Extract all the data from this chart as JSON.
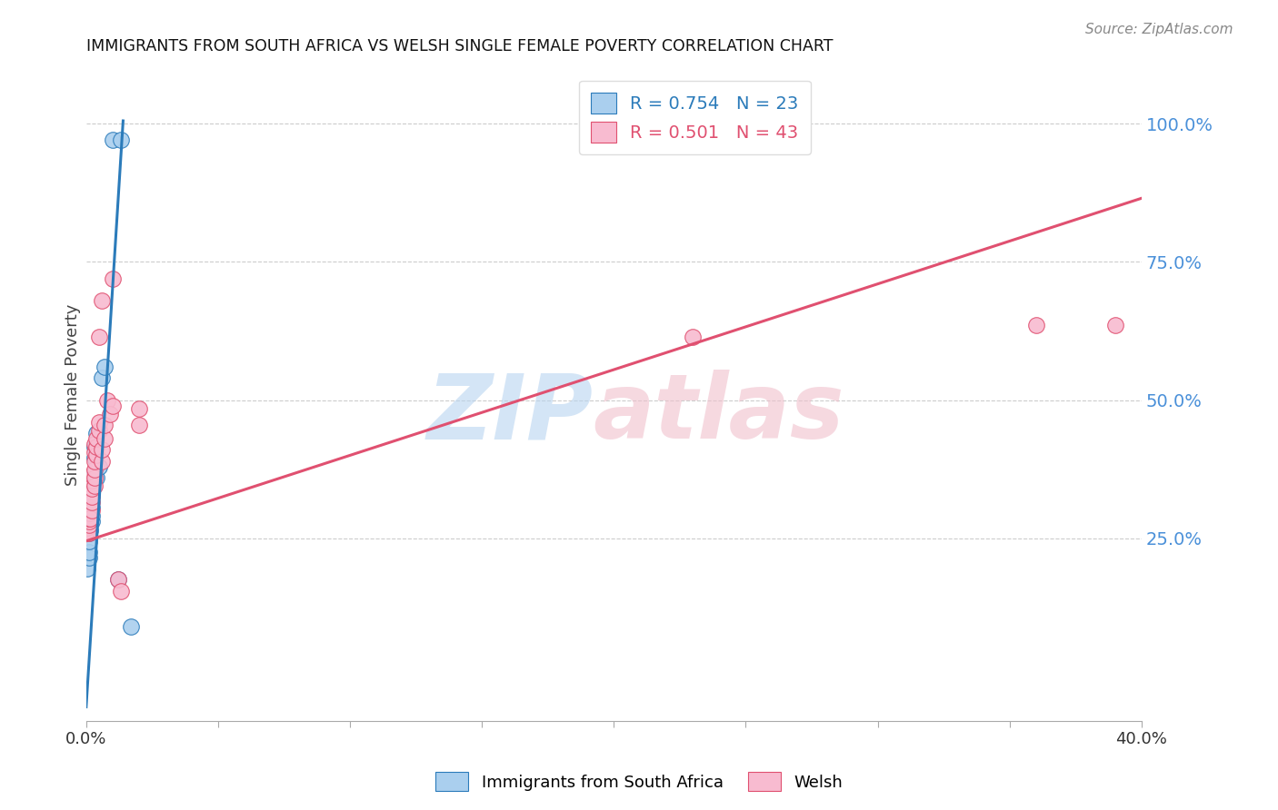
{
  "title": "IMMIGRANTS FROM SOUTH AFRICA VS WELSH SINGLE FEMALE POVERTY CORRELATION CHART",
  "source": "Source: ZipAtlas.com",
  "ylabel": "Single Female Poverty",
  "right_yticks": [
    "100.0%",
    "75.0%",
    "50.0%",
    "25.0%"
  ],
  "right_ytick_vals": [
    1.0,
    0.75,
    0.5,
    0.25
  ],
  "xlim": [
    0.0,
    0.4
  ],
  "ylim": [
    -0.08,
    1.1
  ],
  "legend_r1": "R = 0.754   N = 23",
  "legend_r2": "R = 0.501   N = 43",
  "blue_scatter": [
    [
      0.0005,
      0.195
    ],
    [
      0.001,
      0.215
    ],
    [
      0.001,
      0.225
    ],
    [
      0.001,
      0.245
    ],
    [
      0.001,
      0.26
    ],
    [
      0.001,
      0.27
    ],
    [
      0.0015,
      0.265
    ],
    [
      0.002,
      0.28
    ],
    [
      0.002,
      0.29
    ],
    [
      0.002,
      0.305
    ],
    [
      0.0025,
      0.35
    ],
    [
      0.003,
      0.37
    ],
    [
      0.003,
      0.395
    ],
    [
      0.003,
      0.415
    ],
    [
      0.004,
      0.44
    ],
    [
      0.004,
      0.36
    ],
    [
      0.005,
      0.38
    ],
    [
      0.006,
      0.54
    ],
    [
      0.007,
      0.56
    ],
    [
      0.01,
      0.97
    ],
    [
      0.013,
      0.97
    ],
    [
      0.012,
      0.175
    ],
    [
      0.017,
      0.09
    ]
  ],
  "pink_scatter": [
    [
      0.0003,
      0.265
    ],
    [
      0.0005,
      0.27
    ],
    [
      0.001,
      0.26
    ],
    [
      0.001,
      0.275
    ],
    [
      0.001,
      0.28
    ],
    [
      0.001,
      0.285
    ],
    [
      0.001,
      0.295
    ],
    [
      0.001,
      0.305
    ],
    [
      0.0015,
      0.285
    ],
    [
      0.002,
      0.3
    ],
    [
      0.002,
      0.315
    ],
    [
      0.002,
      0.325
    ],
    [
      0.002,
      0.34
    ],
    [
      0.002,
      0.355
    ],
    [
      0.002,
      0.365
    ],
    [
      0.003,
      0.345
    ],
    [
      0.003,
      0.36
    ],
    [
      0.003,
      0.375
    ],
    [
      0.003,
      0.39
    ],
    [
      0.003,
      0.405
    ],
    [
      0.003,
      0.42
    ],
    [
      0.004,
      0.4
    ],
    [
      0.004,
      0.415
    ],
    [
      0.004,
      0.43
    ],
    [
      0.005,
      0.445
    ],
    [
      0.005,
      0.46
    ],
    [
      0.005,
      0.615
    ],
    [
      0.006,
      0.39
    ],
    [
      0.006,
      0.41
    ],
    [
      0.006,
      0.68
    ],
    [
      0.007,
      0.43
    ],
    [
      0.007,
      0.455
    ],
    [
      0.008,
      0.5
    ],
    [
      0.009,
      0.475
    ],
    [
      0.01,
      0.49
    ],
    [
      0.01,
      0.72
    ],
    [
      0.012,
      0.175
    ],
    [
      0.013,
      0.155
    ],
    [
      0.02,
      0.455
    ],
    [
      0.02,
      0.485
    ],
    [
      0.23,
      0.615
    ],
    [
      0.36,
      0.635
    ],
    [
      0.39,
      0.635
    ]
  ],
  "blue_color": "#aacfee",
  "pink_color": "#f8bbd0",
  "blue_line_color": "#2b7bba",
  "pink_line_color": "#e05070",
  "grid_color": "#cccccc",
  "right_axis_color": "#4a90d9",
  "background_color": "#ffffff",
  "blue_line_x": [
    0.0,
    0.014
  ],
  "blue_line_y": [
    -0.055,
    1.005
  ],
  "pink_line_x": [
    0.0,
    0.4
  ],
  "pink_line_y": [
    0.245,
    0.865
  ]
}
